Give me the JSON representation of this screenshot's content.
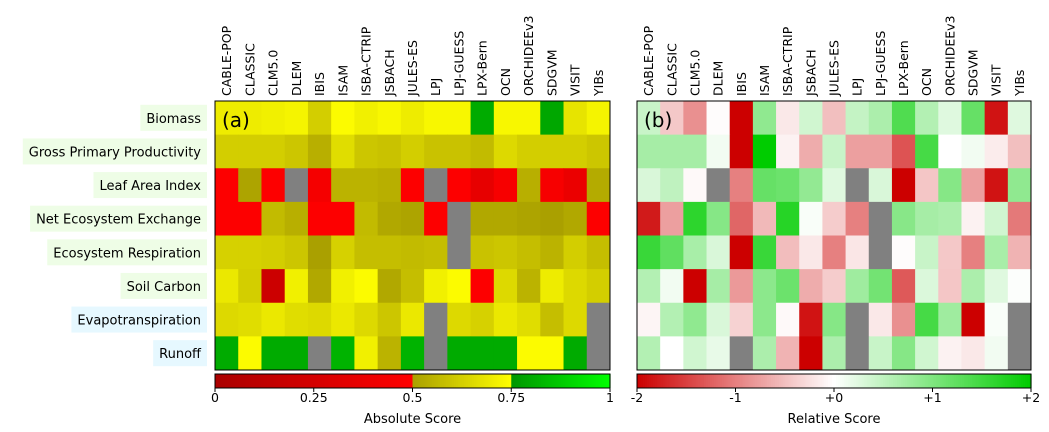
{
  "chart_data": [
    {
      "type": "heatmap",
      "panel_label": "(a)",
      "colorbar_label": "Absolute Score",
      "colorbar_ticks": [
        "0",
        "0.25",
        "0.5",
        "0.75",
        "1"
      ],
      "colorbar_tick_values": [
        0,
        0.25,
        0.5,
        0.75,
        1
      ],
      "vlim": [
        0,
        1
      ],
      "missing_color": "#808080",
      "values": [
        [
          0.7,
          0.7,
          0.71,
          0.72,
          0.62,
          0.74,
          0.71,
          0.73,
          0.7,
          0.73,
          0.73,
          0.8,
          0.73,
          0.73,
          0.79,
          0.68,
          0.72
        ],
        [
          0.62,
          0.62,
          0.62,
          0.6,
          0.54,
          0.66,
          0.6,
          0.59,
          0.62,
          0.59,
          0.59,
          0.57,
          0.65,
          0.62,
          0.62,
          0.62,
          0.6
        ],
        [
          0.49,
          0.51,
          0.49,
          null,
          0.44,
          0.55,
          0.55,
          0.54,
          0.49,
          null,
          0.49,
          0.36,
          0.45,
          0.54,
          0.45,
          0.38,
          0.53
        ],
        [
          0.49,
          0.49,
          0.57,
          0.54,
          0.49,
          0.49,
          0.57,
          0.52,
          0.51,
          0.49,
          null,
          0.52,
          0.52,
          0.51,
          0.5,
          0.52,
          0.49
        ],
        [
          0.63,
          0.63,
          0.62,
          0.6,
          0.5,
          0.63,
          0.58,
          0.58,
          0.57,
          0.58,
          null,
          0.59,
          0.6,
          0.58,
          0.55,
          0.62,
          0.58
        ],
        [
          0.69,
          0.62,
          0.2,
          0.71,
          0.52,
          0.71,
          0.74,
          0.52,
          0.58,
          0.71,
          0.74,
          0.49,
          0.65,
          0.55,
          0.7,
          0.65,
          0.62
        ],
        [
          0.65,
          0.66,
          0.69,
          0.66,
          0.65,
          0.69,
          0.65,
          0.6,
          0.69,
          null,
          0.65,
          0.63,
          0.69,
          0.66,
          0.58,
          0.65,
          null
        ],
        [
          0.8,
          0.74,
          0.8,
          0.8,
          null,
          0.82,
          0.71,
          0.55,
          0.82,
          null,
          0.8,
          0.8,
          0.8,
          0.74,
          0.74,
          0.8,
          null
        ]
      ]
    },
    {
      "type": "heatmap",
      "panel_label": "(b)",
      "colorbar_label": "Relative Score",
      "colorbar_ticks": [
        "-2",
        "-1",
        "+0",
        "+1",
        "+2"
      ],
      "colorbar_tick_values": [
        -2,
        -1,
        0,
        1,
        2
      ],
      "vlim": [
        -2,
        2
      ],
      "missing_color": "#808080",
      "values": [
        [
          0.43,
          -0.43,
          -0.87,
          -0.02,
          -2,
          0.87,
          -0.18,
          0.37,
          -0.5,
          0.46,
          0.65,
          1.37,
          0.6,
          0.25,
          1.2,
          -1.85,
          0.25
        ],
        [
          0.7,
          0.7,
          0.7,
          0.1,
          -2,
          2,
          -0.1,
          -0.65,
          0.43,
          -0.75,
          -0.75,
          -1.35,
          1.45,
          0,
          0.1,
          -0.15,
          -0.5
        ],
        [
          0.3,
          0.5,
          -0.05,
          null,
          -1.0,
          1.2,
          1.15,
          0.85,
          0.25,
          null,
          0.3,
          -2,
          -0.45,
          0.95,
          -0.75,
          -1.85,
          0.87
        ],
        [
          -1.8,
          -0.75,
          1.65,
          0.95,
          -1.2,
          -0.55,
          1.7,
          0.05,
          -0.4,
          -1.0,
          null,
          0.93,
          0.7,
          0.65,
          -0.1,
          0.37,
          -1.05
        ],
        [
          1.55,
          1.25,
          0.68,
          0.3,
          -2,
          1.55,
          -0.52,
          -0.18,
          -1.0,
          -0.2,
          null,
          -0.02,
          0.43,
          -0.43,
          -1.0,
          0.68,
          -0.6
        ],
        [
          0.6,
          0.1,
          -2,
          0.7,
          -0.8,
          0.9,
          1.15,
          -0.65,
          -0.4,
          0.75,
          1.1,
          -1.3,
          0.28,
          -0.45,
          0.65,
          0.25,
          0.02
        ],
        [
          -0.08,
          0.6,
          0.87,
          0.3,
          -0.35,
          0.9,
          -0.05,
          -1.85,
          0.95,
          null,
          -0.18,
          -0.87,
          1.45,
          0.75,
          -2,
          0.05,
          null
        ],
        [
          0.6,
          0,
          0.37,
          0.18,
          null,
          0.65,
          -0.6,
          -2,
          0.65,
          null,
          0.43,
          0.95,
          0.37,
          -0.1,
          -0.18,
          0.1,
          null
        ]
      ]
    }
  ],
  "models": [
    "CABLE-POP",
    "CLASSIC",
    "CLM5.0",
    "DLEM",
    "IBIS",
    "ISAM",
    "ISBA-CTRIP",
    "JSBACH",
    "JULES-ES",
    "LPJ",
    "LPJ-GUESS",
    "LPX-Bern",
    "OCN",
    "ORCHIDEEv3",
    "SDGVM",
    "VISIT",
    "YIBs"
  ],
  "variables": [
    {
      "name": "Biomass",
      "group_color": "#eefde6"
    },
    {
      "name": "Gross Primary Productivity",
      "group_color": "#eefde6"
    },
    {
      "name": "Leaf Area Index",
      "group_color": "#eefde6"
    },
    {
      "name": "Net Ecosystem Exchange",
      "group_color": "#eefde6"
    },
    {
      "name": "Ecosystem Respiration",
      "group_color": "#eefde6"
    },
    {
      "name": "Soil Carbon",
      "group_color": "#eefde6"
    },
    {
      "name": "Evapotranspiration",
      "group_color": "#e6f8ff"
    },
    {
      "name": "Runoff",
      "group_color": "#e6f8ff"
    }
  ]
}
